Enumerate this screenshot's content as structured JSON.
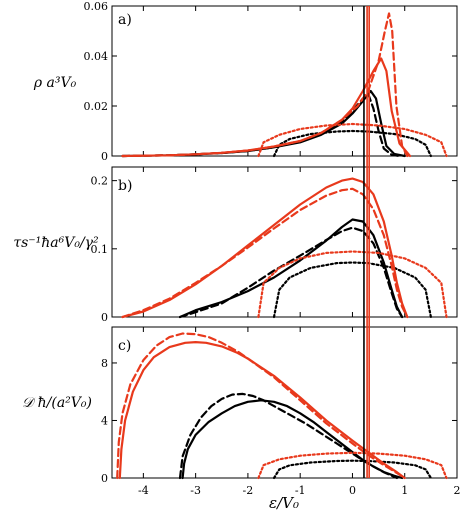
{
  "chart_data": {
    "type": "line",
    "xlabel": "ε/V₀",
    "xlim": [
      -4.6,
      2.0
    ],
    "xticks": [
      -4,
      -3,
      -2,
      -1,
      0,
      1,
      2
    ],
    "vlines": [
      {
        "x": 0.22,
        "color": "#000000"
      },
      {
        "x": 0.28,
        "color": "#e8391c"
      },
      {
        "x": 0.32,
        "color": "#e8391c"
      }
    ],
    "colors": {
      "black": "#000000",
      "red": "#e8391c"
    },
    "panels": [
      {
        "label": "a)",
        "ylabel": "ρ a³V₀",
        "ylim": [
          0,
          0.06
        ],
        "yticks": [
          0,
          0.02,
          0.04,
          0.06
        ],
        "ytick_labels": [
          "0",
          "0.02",
          "0.04",
          "0.06"
        ],
        "series": [
          {
            "color": "#000000",
            "style": "solid",
            "x": [
              -4.4,
              -3.5,
              -3,
              -2.5,
              -2,
              -1.5,
              -1,
              -0.6,
              -0.2,
              0,
              0.2,
              0.35,
              0.45,
              0.55,
              0.65,
              0.8,
              1.0
            ],
            "y": [
              0,
              0.0003,
              0.0007,
              0.0012,
              0.002,
              0.0035,
              0.0055,
              0.0085,
              0.013,
              0.017,
              0.022,
              0.026,
              0.023,
              0.013,
              0.004,
              0.0008,
              0
            ]
          },
          {
            "color": "#000000",
            "style": "dashed",
            "x": [
              -4.4,
              -3.5,
              -3,
              -2.5,
              -2,
              -1.5,
              -1,
              -0.6,
              -0.2,
              0,
              0.2,
              0.3,
              0.4,
              0.5,
              0.6,
              0.75,
              0.9
            ],
            "y": [
              0,
              0.0003,
              0.0007,
              0.0012,
              0.002,
              0.0035,
              0.0058,
              0.0092,
              0.014,
              0.018,
              0.023,
              0.025,
              0.019,
              0.01,
              0.003,
              0.0005,
              0
            ]
          },
          {
            "color": "#000000",
            "style": "dotted",
            "x": [
              -1.5,
              -1.4,
              -1.2,
              -0.8,
              -0.3,
              0,
              0.3,
              0.8,
              1.2,
              1.4,
              1.5
            ],
            "y": [
              0,
              0.0045,
              0.0068,
              0.0088,
              0.0098,
              0.01,
              0.0098,
              0.0088,
              0.0068,
              0.0045,
              0
            ]
          },
          {
            "color": "#e8391c",
            "style": "solid",
            "x": [
              -4.4,
              -3.5,
              -3,
              -2.5,
              -2,
              -1.5,
              -1,
              -0.6,
              -0.2,
              0,
              0.2,
              0.4,
              0.55,
              0.65,
              0.75,
              0.9,
              1.1
            ],
            "y": [
              0,
              0.0003,
              0.0007,
              0.0013,
              0.0022,
              0.0038,
              0.006,
              0.0092,
              0.0145,
              0.019,
              0.026,
              0.034,
              0.039,
              0.034,
              0.018,
              0.005,
              0
            ]
          },
          {
            "color": "#e8391c",
            "style": "dashed",
            "x": [
              -4.4,
              -3.5,
              -3,
              -2.5,
              -2,
              -1.5,
              -1,
              -0.6,
              -0.2,
              0.1,
              0.3,
              0.5,
              0.62,
              0.7,
              0.76,
              0.84,
              0.95,
              1.05
            ],
            "y": [
              0,
              0.0003,
              0.0007,
              0.0013,
              0.0022,
              0.0038,
              0.006,
              0.0092,
              0.0145,
              0.02,
              0.026,
              0.038,
              0.05,
              0.057,
              0.05,
              0.02,
              0.004,
              0
            ]
          },
          {
            "color": "#e8391c",
            "style": "dotted",
            "x": [
              -1.8,
              -1.7,
              -1.4,
              -1,
              -0.5,
              0,
              0.5,
              1,
              1.4,
              1.7,
              1.8
            ],
            "y": [
              0,
              0.0055,
              0.0085,
              0.0108,
              0.0122,
              0.0128,
              0.0122,
              0.0108,
              0.0085,
              0.0055,
              0
            ]
          }
        ]
      },
      {
        "label": "b)",
        "ylabel": "τs⁻¹ħa⁶V₀/γ²",
        "ylim": [
          0,
          0.22
        ],
        "yticks": [
          0,
          0.1,
          0.2
        ],
        "ytick_labels": [
          "0",
          "0.1",
          "0.2"
        ],
        "series": [
          {
            "color": "#000000",
            "style": "solid",
            "x": [
              -3.3,
              -3,
              -2.5,
              -2,
              -1.5,
              -1,
              -0.5,
              -0.2,
              0,
              0.2,
              0.4,
              0.6,
              0.75,
              0.85,
              0.95
            ],
            "y": [
              0,
              0.01,
              0.022,
              0.038,
              0.058,
              0.083,
              0.112,
              0.132,
              0.143,
              0.14,
              0.12,
              0.08,
              0.04,
              0.015,
              0
            ]
          },
          {
            "color": "#000000",
            "style": "dashed",
            "x": [
              -3.3,
              -3,
              -2.5,
              -2,
              -1.5,
              -1,
              -0.5,
              -0.2,
              0,
              0.2,
              0.4,
              0.6,
              0.75,
              0.85,
              0.95
            ],
            "y": [
              0,
              0.007,
              0.02,
              0.043,
              0.068,
              0.09,
              0.113,
              0.126,
              0.131,
              0.126,
              0.108,
              0.072,
              0.035,
              0.012,
              0
            ]
          },
          {
            "color": "#000000",
            "style": "dotted",
            "x": [
              -1.5,
              -1.4,
              -1.2,
              -0.8,
              -0.3,
              0,
              0.3,
              0.8,
              1.2,
              1.4,
              1.5
            ],
            "y": [
              0,
              0.04,
              0.058,
              0.072,
              0.079,
              0.08,
              0.079,
              0.072,
              0.058,
              0.04,
              0
            ]
          },
          {
            "color": "#e8391c",
            "style": "solid",
            "x": [
              -4.4,
              -4,
              -3.5,
              -3,
              -2.5,
              -2,
              -1.5,
              -1,
              -0.5,
              -0.2,
              0,
              0.2,
              0.4,
              0.6,
              0.75,
              0.85,
              0.95,
              1.05
            ],
            "y": [
              0,
              0.008,
              0.025,
              0.048,
              0.075,
              0.105,
              0.135,
              0.165,
              0.19,
              0.2,
              0.203,
              0.198,
              0.18,
              0.14,
              0.09,
              0.05,
              0.02,
              0
            ]
          },
          {
            "color": "#e8391c",
            "style": "dashed",
            "x": [
              -4.4,
              -4,
              -3.5,
              -3,
              -2.5,
              -2,
              -1.5,
              -1,
              -0.5,
              -0.2,
              0,
              0.2,
              0.4,
              0.6,
              0.75,
              0.85,
              0.95,
              1.05
            ],
            "y": [
              0,
              0.01,
              0.027,
              0.05,
              0.075,
              0.102,
              0.13,
              0.157,
              0.178,
              0.186,
              0.188,
              0.18,
              0.158,
              0.12,
              0.075,
              0.04,
              0.015,
              0
            ]
          },
          {
            "color": "#e8391c",
            "style": "dotted",
            "x": [
              -1.8,
              -1.7,
              -1.4,
              -1,
              -0.5,
              0,
              0.5,
              1,
              1.4,
              1.7,
              1.8
            ],
            "y": [
              0,
              0.05,
              0.072,
              0.086,
              0.094,
              0.096,
              0.094,
              0.086,
              0.072,
              0.05,
              0
            ]
          }
        ]
      },
      {
        "label": "c)",
        "ylabel": "𝒟 ħ/(a²V₀)",
        "ylim": [
          0,
          10.5
        ],
        "yticks": [
          0,
          4,
          8
        ],
        "ytick_labels": [
          "0",
          "4",
          "8"
        ],
        "series": [
          {
            "color": "#000000",
            "style": "solid",
            "x": [
              -3.25,
              -3.22,
              -3.15,
              -3,
              -2.75,
              -2.5,
              -2.25,
              -2,
              -1.75,
              -1.5,
              -1.25,
              -1,
              -0.75,
              -0.5,
              -0.25,
              0,
              0.2,
              0.4,
              0.6,
              0.8,
              0.95
            ],
            "y": [
              0,
              1,
              2,
              3,
              3.9,
              4.5,
              5,
              5.3,
              5.4,
              5.3,
              5.0,
              4.5,
              3.9,
              3.2,
              2.5,
              1.8,
              1.25,
              0.8,
              0.42,
              0.15,
              0
            ]
          },
          {
            "color": "#000000",
            "style": "dashed",
            "x": [
              -3.3,
              -3.25,
              -3.1,
              -2.9,
              -2.7,
              -2.5,
              -2.3,
              -2.1,
              -1.9,
              -1.7,
              -1.5,
              -1.2,
              -0.9,
              -0.6,
              -0.3,
              0,
              0.3,
              0.6,
              0.85
            ],
            "y": [
              0,
              1.5,
              3,
              4.2,
              5,
              5.5,
              5.8,
              5.85,
              5.7,
              5.4,
              5,
              4.4,
              3.8,
              3.1,
              2.4,
              1.7,
              1.0,
              0.4,
              0
            ]
          },
          {
            "color": "#000000",
            "style": "dotted",
            "x": [
              -1.5,
              -1.4,
              -1.2,
              -0.8,
              -0.3,
              0,
              0.3,
              0.8,
              1.2,
              1.4,
              1.5
            ],
            "y": [
              0,
              0.6,
              0.88,
              1.08,
              1.18,
              1.2,
              1.18,
              1.08,
              0.88,
              0.6,
              0
            ]
          },
          {
            "color": "#e8391c",
            "style": "solid",
            "x": [
              -4.45,
              -4.42,
              -4.35,
              -4.2,
              -4.0,
              -3.8,
              -3.5,
              -3.2,
              -3.0,
              -2.8,
              -2.5,
              -2.2,
              -2,
              -1.5,
              -1,
              -0.5,
              0,
              0.3,
              0.6,
              0.85,
              1.0
            ],
            "y": [
              0,
              2,
              4,
              6,
              7.5,
              8.4,
              9.1,
              9.4,
              9.45,
              9.4,
              9.15,
              8.7,
              8.3,
              7.1,
              5.6,
              4.0,
              2.6,
              1.8,
              1.0,
              0.4,
              0
            ]
          },
          {
            "color": "#e8391c",
            "style": "dashed",
            "x": [
              -4.5,
              -4.47,
              -4.4,
              -4.25,
              -4.0,
              -3.75,
              -3.5,
              -3.25,
              -3.0,
              -2.75,
              -2.5,
              -2.2,
              -2,
              -1.5,
              -1,
              -0.5,
              0,
              0.3,
              0.6,
              0.85,
              1.0
            ],
            "y": [
              0,
              2.5,
              4.5,
              6.5,
              8.2,
              9.2,
              9.8,
              10.05,
              10.0,
              9.8,
              9.4,
              8.8,
              8.3,
              7.0,
              5.4,
              3.8,
              2.4,
              1.6,
              0.9,
              0.35,
              0
            ]
          },
          {
            "color": "#e8391c",
            "style": "dotted",
            "x": [
              -1.8,
              -1.7,
              -1.4,
              -1,
              -0.5,
              0,
              0.5,
              1,
              1.4,
              1.7,
              1.8
            ],
            "y": [
              0,
              0.9,
              1.3,
              1.55,
              1.7,
              1.75,
              1.7,
              1.55,
              1.3,
              0.9,
              0
            ]
          }
        ]
      }
    ]
  }
}
